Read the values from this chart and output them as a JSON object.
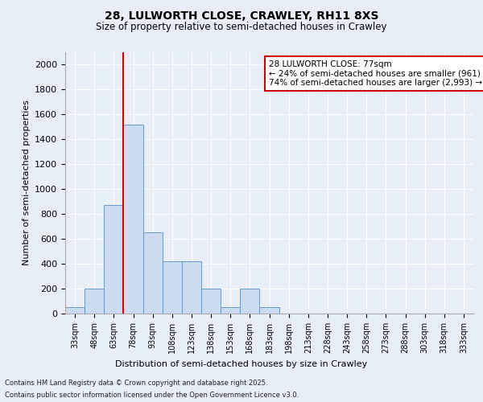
{
  "title_line1": "28, LULWORTH CLOSE, CRAWLEY, RH11 8XS",
  "title_line2": "Size of property relative to semi-detached houses in Crawley",
  "xlabel": "Distribution of semi-detached houses by size in Crawley",
  "ylabel": "Number of semi-detached properties",
  "bin_labels": [
    "33sqm",
    "48sqm",
    "63sqm",
    "78sqm",
    "93sqm",
    "108sqm",
    "123sqm",
    "138sqm",
    "153sqm",
    "168sqm",
    "183sqm",
    "198sqm",
    "213sqm",
    "228sqm",
    "243sqm",
    "258sqm",
    "273sqm",
    "288sqm",
    "303sqm",
    "318sqm",
    "333sqm"
  ],
  "bar_values": [
    50,
    200,
    870,
    1520,
    650,
    420,
    420,
    200,
    50,
    200,
    50,
    0,
    0,
    0,
    0,
    0,
    0,
    0,
    0,
    0,
    0
  ],
  "bar_color": "#ccdcf0",
  "bar_edgecolor": "#6699cc",
  "vline_x": 2.5,
  "annotation_title": "28 LULWORTH CLOSE: 77sqm",
  "annotation_line2": "← 24% of semi-detached houses are smaller (961)",
  "annotation_line3": "74% of semi-detached houses are larger (2,993) →",
  "annotation_box_color": "#cc0000",
  "ylim": [
    0,
    2100
  ],
  "yticks": [
    0,
    200,
    400,
    600,
    800,
    1000,
    1200,
    1400,
    1600,
    1800,
    2000
  ],
  "footer_line1": "Contains HM Land Registry data © Crown copyright and database right 2025.",
  "footer_line2": "Contains public sector information licensed under the Open Government Licence v3.0.",
  "bg_color": "#e8eef8",
  "plot_bg_color": "#e8eef8",
  "grid_color": "#ffffff"
}
